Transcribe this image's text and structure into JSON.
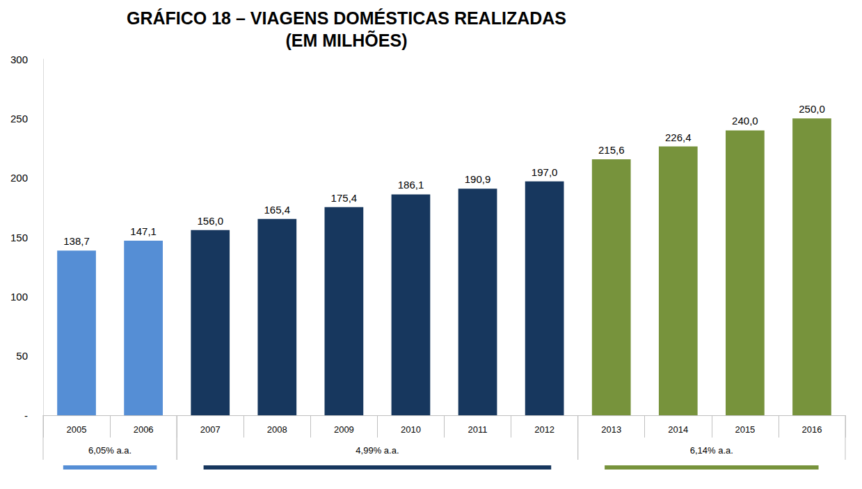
{
  "chart_data": {
    "type": "bar",
    "title": "GRÁFICO 18 – VIAGENS DOMÉSTICAS REALIZADAS\n(EM MILHÕES)",
    "categories": [
      "2005",
      "2006",
      "2007",
      "2008",
      "2009",
      "2010",
      "2011",
      "2012",
      "2013",
      "2014",
      "2015",
      "2016"
    ],
    "values": [
      138.7,
      147.1,
      156.0,
      165.4,
      175.4,
      186.1,
      190.9,
      197.0,
      215.6,
      226.4,
      240.0,
      250.0
    ],
    "value_labels": [
      "138,7",
      "147,1",
      "156,0",
      "165,4",
      "175,4",
      "186,1",
      "190,9",
      "197,0",
      "215,6",
      "226,4",
      "240,0",
      "250,0"
    ],
    "colors": [
      "#558ed5",
      "#558ed5",
      "#17375e",
      "#17375e",
      "#17375e",
      "#17375e",
      "#17375e",
      "#17375e",
      "#77933c",
      "#77933c",
      "#77933c",
      "#77933c"
    ],
    "data_labels": true,
    "grid": false,
    "ylim": [
      0,
      300
    ],
    "yticks": [
      {
        "value": 0,
        "label": "-"
      },
      50,
      100,
      150,
      200,
      250,
      300
    ],
    "annotations": [
      {
        "text": "6,05% a.a.",
        "from": "2005",
        "to": "2006",
        "color": "#558ed5"
      },
      {
        "text": "4,99% a.a.",
        "from": "2007",
        "to": "2012",
        "color": "#17375e"
      },
      {
        "text": "6,14% a.a.",
        "from": "2013",
        "to": "2016",
        "color": "#77933c"
      }
    ]
  }
}
